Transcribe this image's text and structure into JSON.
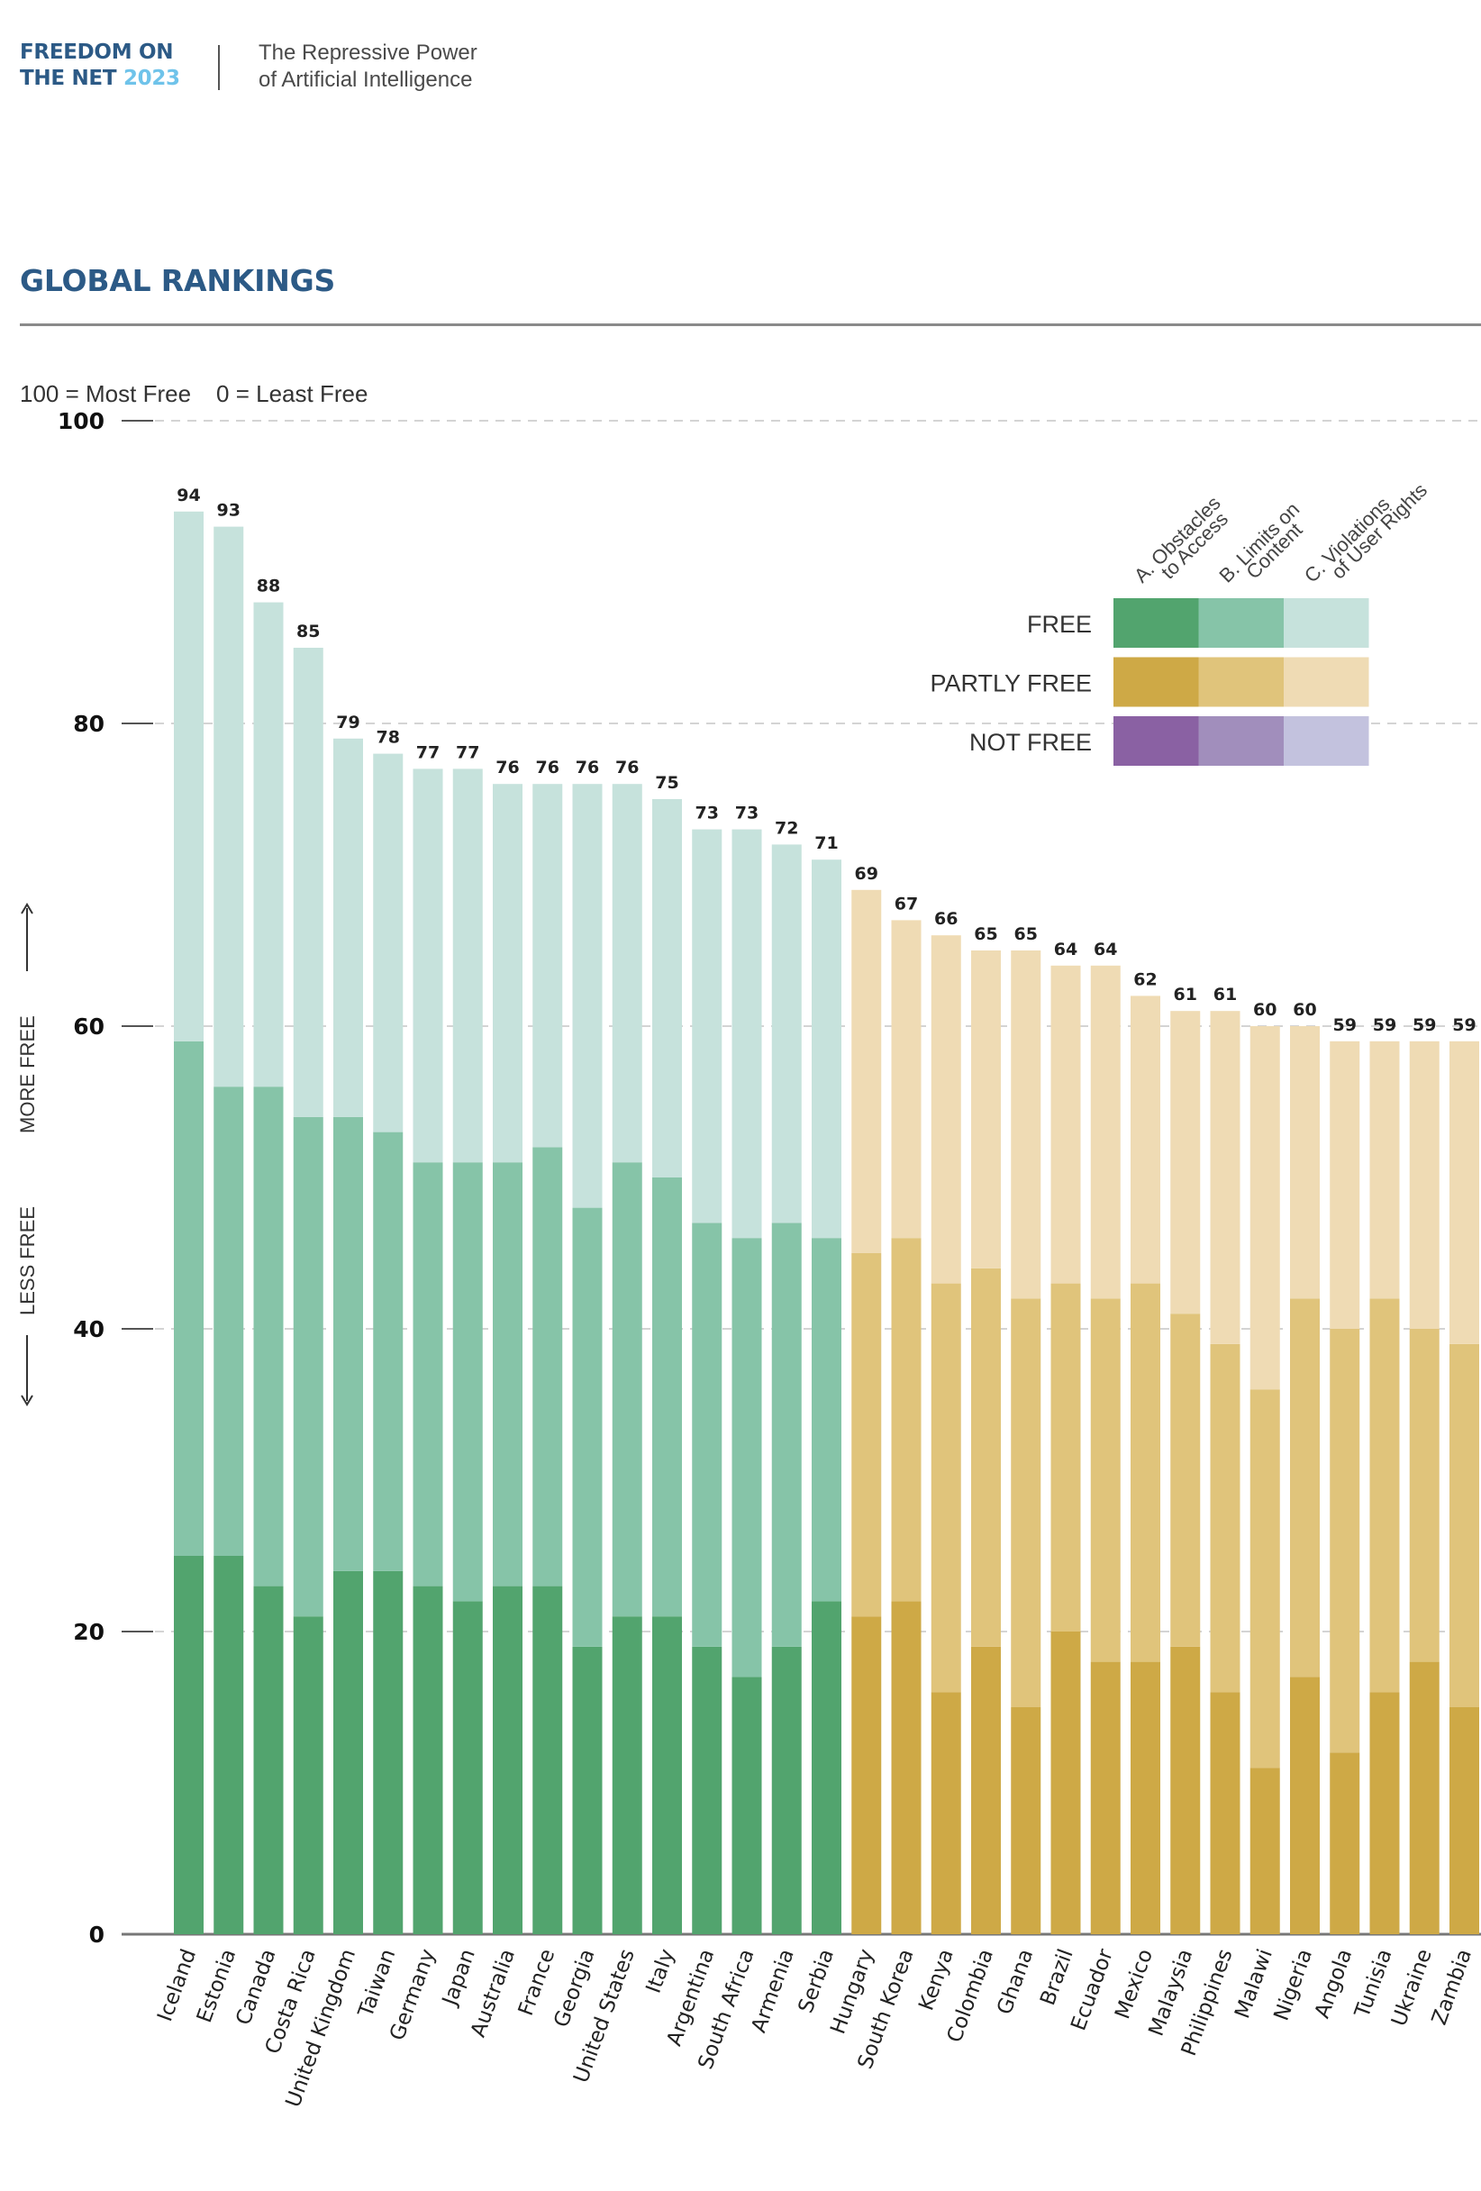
{
  "header": {
    "logo_line1": "FREEDOM ON",
    "logo_line2": "THE NET",
    "logo_year": "2023",
    "subtitle_line1": "The Repressive Power",
    "subtitle_line2": "of Artificial Intelligence"
  },
  "section": {
    "title": "GLOBAL RANKINGS",
    "scale_note_max": "100 = Most Free",
    "scale_note_min": "0 = Least Free"
  },
  "colors": {
    "brand_blue": "#2c5a86",
    "year_blue": "#6fc3ea",
    "free": [
      "#52a46e",
      "#86c4a8",
      "#c6e2dc"
    ],
    "partly_free": [
      "#cea946",
      "#e0c47b",
      "#efdbb4"
    ],
    "not_free": [
      "#8a61a3",
      "#a18ebc",
      "#c3c2de"
    ]
  },
  "chart_data": {
    "type": "bar",
    "stacked": true,
    "title": "GLOBAL RANKINGS",
    "subtitle": "100 = Most Free    0 = Least Free",
    "xlabel": "",
    "ylabel_up": "MORE FREE",
    "ylabel_down": "LESS FREE",
    "ylim": [
      0,
      100
    ],
    "yticks": [
      0,
      20,
      40,
      60,
      80,
      100
    ],
    "grid": true,
    "legend_placement": "top-right",
    "legend": {
      "columns": [
        "A. Obstacles to Access",
        "B. Limits on Content",
        "C. Violations of User Rights"
      ],
      "column_lines": [
        [
          "A. Obstacles",
          "to Access"
        ],
        [
          "B. Limits on",
          "Content"
        ],
        [
          "C. Violations",
          "of User Rights"
        ]
      ],
      "rows": [
        "FREE",
        "PARTLY FREE",
        "NOT FREE"
      ]
    },
    "categories": [
      "Iceland",
      "Estonia",
      "Canada",
      "Costa Rica",
      "United Kingdom",
      "Taiwan",
      "Germany",
      "Japan",
      "Australia",
      "France",
      "Georgia",
      "United States",
      "Italy",
      "Argentina",
      "South Africa",
      "Armenia",
      "Serbia",
      "Hungary",
      "South Korea",
      "Kenya",
      "Colombia",
      "Ghana",
      "Brazil",
      "Ecuador",
      "Mexico",
      "Malaysia",
      "Philippines",
      "Malawi",
      "Nigeria",
      "Angola",
      "Tunisia",
      "Ukraine",
      "Zambia"
    ],
    "status": [
      "FREE",
      "FREE",
      "FREE",
      "FREE",
      "FREE",
      "FREE",
      "FREE",
      "FREE",
      "FREE",
      "FREE",
      "FREE",
      "FREE",
      "FREE",
      "FREE",
      "FREE",
      "FREE",
      "FREE",
      "PARTLY FREE",
      "PARTLY FREE",
      "PARTLY FREE",
      "PARTLY FREE",
      "PARTLY FREE",
      "PARTLY FREE",
      "PARTLY FREE",
      "PARTLY FREE",
      "PARTLY FREE",
      "PARTLY FREE",
      "PARTLY FREE",
      "PARTLY FREE",
      "PARTLY FREE",
      "PARTLY FREE",
      "PARTLY FREE",
      "PARTLY FREE"
    ],
    "series": [
      {
        "name": "A. Obstacles to Access",
        "values": [
          25,
          25,
          23,
          21,
          24,
          24,
          23,
          22,
          23,
          23,
          19,
          21,
          21,
          19,
          17,
          19,
          22,
          21,
          22,
          16,
          19,
          15,
          20,
          18,
          18,
          19,
          16,
          11,
          17,
          12,
          16,
          18,
          15
        ]
      },
      {
        "name": "B. Limits on Content",
        "values": [
          34,
          31,
          33,
          33,
          30,
          29,
          28,
          29,
          28,
          29,
          29,
          30,
          29,
          28,
          29,
          28,
          24,
          24,
          24,
          27,
          25,
          27,
          23,
          24,
          25,
          22,
          23,
          25,
          25,
          28,
          26,
          22,
          24
        ]
      },
      {
        "name": "C. Violations of User Rights",
        "values": [
          35,
          37,
          32,
          31,
          25,
          25,
          26,
          26,
          25,
          24,
          28,
          25,
          25,
          26,
          27,
          25,
          25,
          24,
          21,
          23,
          21,
          23,
          21,
          22,
          19,
          20,
          22,
          24,
          18,
          19,
          17,
          19,
          20
        ]
      }
    ],
    "totals": [
      94,
      93,
      88,
      85,
      79,
      78,
      77,
      77,
      76,
      76,
      76,
      76,
      75,
      73,
      73,
      72,
      71,
      69,
      67,
      66,
      65,
      65,
      64,
      64,
      62,
      61,
      61,
      60,
      60,
      59,
      59,
      59,
      59
    ]
  }
}
